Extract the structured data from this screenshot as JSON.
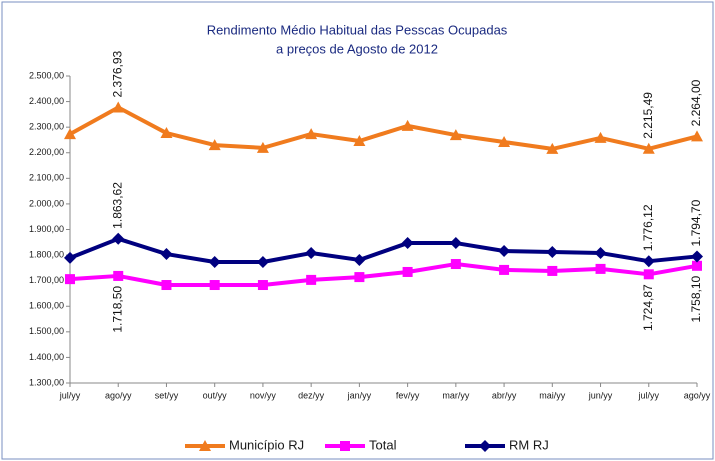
{
  "chart_data": {
    "type": "line",
    "title": "Rendimento  Médio Habitual das Pesscas Ocupadas",
    "subtitle": "a preços de Agosto de 2012",
    "categories": [
      "jul/yy",
      "ago/yy",
      "set/yy",
      "out/yy",
      "nov/yy",
      "dez/yy",
      "jan/yy",
      "fev/yy",
      "mar/yy",
      "abr/yy",
      "mai/yy",
      "jun/yy",
      "jul/yy",
      "ago/yy"
    ],
    "series": [
      {
        "name": "Município RJ",
        "color": "#f07b1e",
        "marker": "triangle",
        "label_side": "above",
        "values": [
          2273,
          2376.93,
          2277,
          2230,
          2219,
          2273,
          2246,
          2305,
          2269,
          2242,
          2215,
          2258,
          2215.49,
          2264.0
        ],
        "value_labels": [
          null,
          "2.376,93",
          null,
          null,
          null,
          null,
          null,
          null,
          null,
          null,
          null,
          null,
          "2.215,49",
          "2.264,00"
        ]
      },
      {
        "name": "Total",
        "color": "#ff00ff",
        "marker": "square",
        "label_side": "below",
        "values": [
          1706,
          1718.5,
          1683,
          1683,
          1683,
          1703,
          1714,
          1734,
          1765,
          1742,
          1738,
          1746,
          1724.87,
          1758.1
        ],
        "value_labels": [
          null,
          "1.718,50",
          null,
          null,
          null,
          null,
          null,
          null,
          null,
          null,
          null,
          null,
          "1.724,87",
          "1.758,10"
        ]
      },
      {
        "name": "RM RJ",
        "color": "#00007f",
        "marker": "diamond",
        "label_side": "above",
        "values": [
          1789,
          1863.62,
          1804,
          1773,
          1773,
          1808,
          1781,
          1847,
          1847,
          1816,
          1812,
          1808,
          1776.12,
          1794.7
        ],
        "value_labels": [
          null,
          "1.863,62",
          null,
          null,
          null,
          null,
          null,
          null,
          null,
          null,
          null,
          null,
          "1.776,12",
          "1.794,70"
        ]
      }
    ],
    "ylim": [
      1300,
      2500
    ],
    "yticks": [
      {
        "value": 1300,
        "label": "1.300,00"
      },
      {
        "value": 1400,
        "label": "1.400,00"
      },
      {
        "value": 1500,
        "label": "1.500,00"
      },
      {
        "value": 1600,
        "label": "1.600,00"
      },
      {
        "value": 1700,
        "label": "1.700,00"
      },
      {
        "value": 1800,
        "label": "1.800,00"
      },
      {
        "value": 1900,
        "label": "1.900,00"
      },
      {
        "value": 2000,
        "label": "2.000,00"
      },
      {
        "value": 2100,
        "label": "2.100,00"
      },
      {
        "value": 2200,
        "label": "2.200,00"
      },
      {
        "value": 2300,
        "label": "2.300,00"
      },
      {
        "value": 2400,
        "label": "2.400,00"
      },
      {
        "value": 2500,
        "label": "2.500,00"
      }
    ],
    "grid": false,
    "legend": "bottom"
  }
}
